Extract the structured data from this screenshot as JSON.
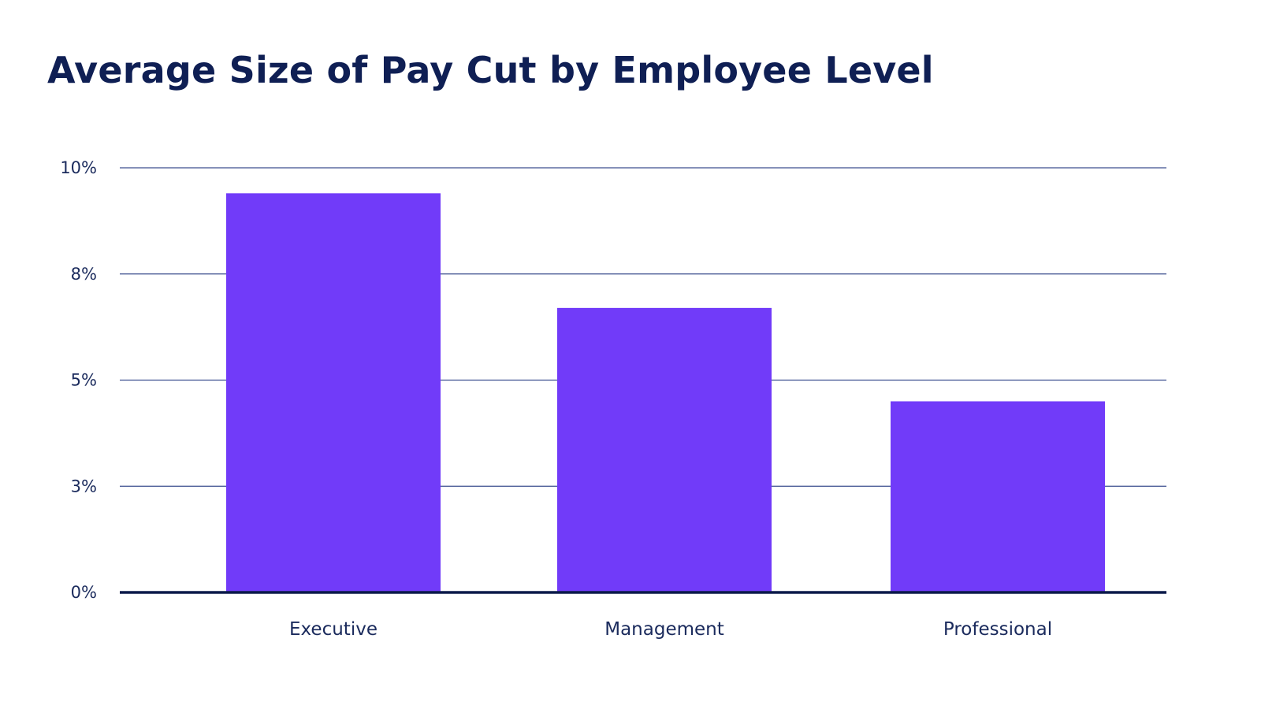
{
  "colors": {
    "title": "#0f1f54",
    "text": "#1a2a5c",
    "bar": "#713bf9",
    "grid": "#3d4f8f",
    "axis": "#0b1a4a",
    "background": "#ffffff"
  },
  "chart_data": {
    "type": "bar",
    "title": "Average Size of Pay Cut by Employee Level",
    "xlabel": "",
    "ylabel": "",
    "categories": [
      "Executive",
      "Management",
      "Professional"
    ],
    "values": [
      9.4,
      6.7,
      4.5
    ],
    "ylim": [
      0,
      10
    ],
    "yticks": [
      0,
      2.5,
      5,
      7.5,
      10
    ],
    "ytick_labels": [
      "0%",
      "3%",
      "5%",
      "8%",
      "10%"
    ],
    "grid": true,
    "legend": "none"
  }
}
